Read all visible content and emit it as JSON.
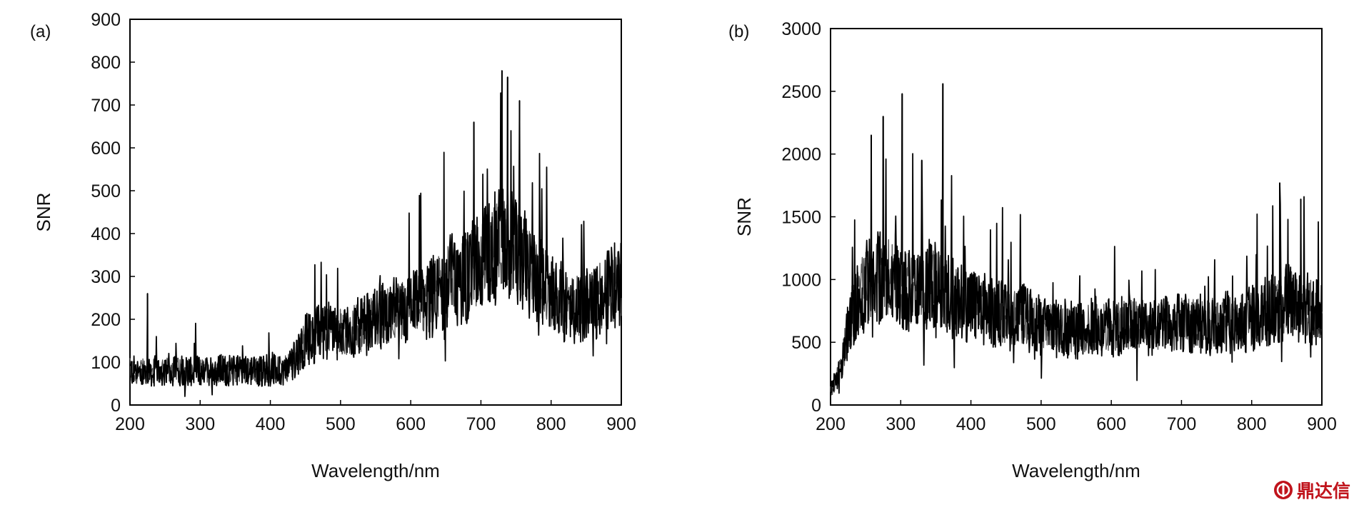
{
  "chart_data": [
    {
      "type": "line",
      "panel_label": "(a)",
      "xlabel": "Wavelength/nm",
      "ylabel": "SNR",
      "xlim": [
        200,
        900
      ],
      "ylim": [
        0,
        900
      ],
      "xticks": [
        200,
        300,
        400,
        500,
        600,
        700,
        800,
        900
      ],
      "yticks": [
        0,
        100,
        200,
        300,
        400,
        500,
        600,
        700,
        800,
        900
      ],
      "grid": false,
      "color": "#000000",
      "series": [
        {
          "x": [
            200,
            225,
            250,
            275,
            300,
            325,
            350,
            375,
            400,
            425,
            450,
            475,
            500,
            525,
            550,
            575,
            600,
            625,
            650,
            675,
            700,
            725,
            750,
            775,
            800,
            825,
            850,
            875,
            900
          ],
          "values": [
            80,
            78,
            80,
            82,
            80,
            82,
            80,
            82,
            80,
            85,
            150,
            175,
            170,
            180,
            200,
            215,
            225,
            245,
            285,
            300,
            330,
            380,
            360,
            300,
            260,
            230,
            235,
            260,
            290
          ]
        }
      ],
      "peaks": [
        {
          "x": 225,
          "y": 260
        },
        {
          "x": 690,
          "y": 660
        },
        {
          "x": 730,
          "y": 780
        },
        {
          "x": 738,
          "y": 765
        },
        {
          "x": 755,
          "y": 710
        }
      ]
    },
    {
      "type": "line",
      "panel_label": "(b)",
      "xlabel": "Wavelength/nm",
      "ylabel": "SNR",
      "xlim": [
        200,
        900
      ],
      "ylim": [
        0,
        3000
      ],
      "xticks": [
        200,
        300,
        400,
        500,
        600,
        700,
        800,
        900
      ],
      "yticks": [
        0,
        500,
        1000,
        1500,
        2000,
        2500,
        3000
      ],
      "grid": false,
      "color": "#000000",
      "series": [
        {
          "x": [
            200,
            215,
            230,
            250,
            275,
            300,
            325,
            350,
            375,
            400,
            425,
            450,
            475,
            500,
            525,
            550,
            575,
            600,
            625,
            650,
            675,
            700,
            725,
            750,
            775,
            800,
            825,
            850,
            875,
            900
          ],
          "values": [
            100,
            300,
            750,
            950,
            1050,
            950,
            900,
            950,
            850,
            800,
            750,
            700,
            700,
            620,
            600,
            590,
            620,
            620,
            640,
            640,
            620,
            650,
            640,
            650,
            660,
            680,
            760,
            820,
            800,
            700
          ]
        }
      ],
      "peaks": [
        {
          "x": 258,
          "y": 2150
        },
        {
          "x": 275,
          "y": 2300
        },
        {
          "x": 302,
          "y": 2480
        },
        {
          "x": 330,
          "y": 1950
        },
        {
          "x": 360,
          "y": 2560
        },
        {
          "x": 840,
          "y": 1770
        },
        {
          "x": 870,
          "y": 1640
        }
      ]
    }
  ],
  "watermark": {
    "text": "鼎达信",
    "color": "#c0141c"
  }
}
